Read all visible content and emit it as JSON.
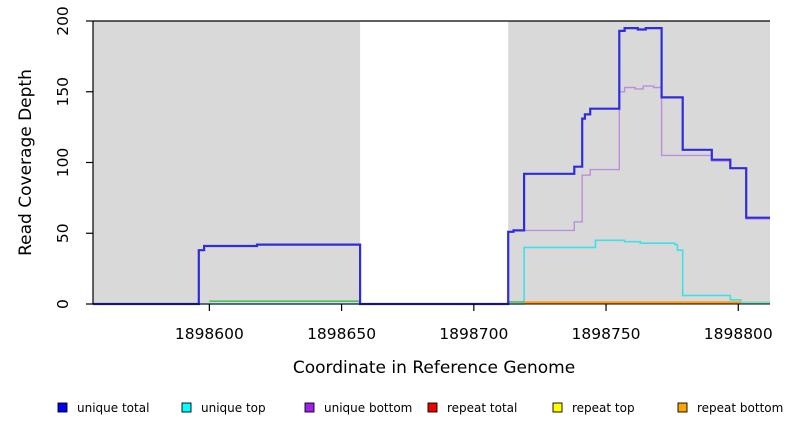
{
  "chart_data": {
    "type": "line",
    "subtype": "step-coverage",
    "title": "",
    "xlabel": "Coordinate in Reference Genome",
    "ylabel": "Read Coverage Depth",
    "xlim": [
      1898556,
      1898812
    ],
    "ylim": [
      0,
      200
    ],
    "xticks": [
      1898600,
      1898650,
      1898700,
      1898750,
      1898800
    ],
    "yticks": [
      0,
      50,
      100,
      150,
      200
    ],
    "grid": false,
    "plot_bg": "#ffffff",
    "shade_color": "#d9d9d9",
    "frame_color": "#000000",
    "shaded_regions": [
      {
        "name": "left-gray-block",
        "x0": 1898556,
        "x1": 1898657
      },
      {
        "name": "right-gray-block",
        "x0": 1898713,
        "x1": 1898812
      }
    ],
    "series": [
      {
        "name": "unique bottom",
        "color": "#bd8ede",
        "width": 1.4,
        "xend": 1898812,
        "steps": [
          [
            1898556,
            0
          ],
          [
            1898596,
            38
          ],
          [
            1898598,
            41
          ],
          [
            1898618,
            42
          ],
          [
            1898657,
            0
          ],
          [
            1898713,
            51
          ],
          [
            1898715,
            52
          ],
          [
            1898738,
            58
          ],
          [
            1898741,
            91
          ],
          [
            1898744,
            95
          ],
          [
            1898755,
            150
          ],
          [
            1898757,
            153
          ],
          [
            1898761,
            152
          ],
          [
            1898764,
            154
          ],
          [
            1898768,
            153
          ],
          [
            1898771,
            105
          ],
          [
            1898790,
            101
          ],
          [
            1898797,
            96
          ],
          [
            1898803,
            60
          ]
        ]
      },
      {
        "name": "unique top",
        "color": "#3fe0e8",
        "width": 1.6,
        "xend": 1898812,
        "steps": [
          [
            1898556,
            0
          ],
          [
            1898719,
            40
          ],
          [
            1898746,
            45
          ],
          [
            1898757,
            44
          ],
          [
            1898763,
            43
          ],
          [
            1898776,
            42
          ],
          [
            1898777,
            38
          ],
          [
            1898779,
            6
          ],
          [
            1898797,
            3
          ],
          [
            1898801,
            1
          ]
        ]
      },
      {
        "name": "baseline green left",
        "color": "#55bd66",
        "width": 1.6,
        "xend": 1898657,
        "steps": [
          [
            1898600,
            2
          ]
        ]
      },
      {
        "name": "baseline green mid",
        "color": "#55bd66",
        "width": 1.6,
        "xend": 1898719,
        "steps": [
          [
            1898713,
            1.5
          ]
        ]
      },
      {
        "name": "repeat bottom",
        "color": "#ff9d18",
        "width": 2.6,
        "xend": 1898801,
        "steps": [
          [
            1898719,
            1
          ]
        ]
      },
      {
        "name": "baseline green right",
        "color": "#a8d8b0",
        "width": 1.6,
        "xend": 1898812,
        "steps": [
          [
            1898801,
            1.5
          ]
        ]
      },
      {
        "name": "unique total",
        "color": "#2f2cdb",
        "width": 2.2,
        "xend": 1898812,
        "steps": [
          [
            1898556,
            0
          ],
          [
            1898596,
            38
          ],
          [
            1898598,
            41
          ],
          [
            1898618,
            42
          ],
          [
            1898657,
            0
          ],
          [
            1898713,
            51
          ],
          [
            1898715,
            52
          ],
          [
            1898719,
            92
          ],
          [
            1898738,
            97
          ],
          [
            1898741,
            131
          ],
          [
            1898742,
            134
          ],
          [
            1898744,
            138
          ],
          [
            1898755,
            193
          ],
          [
            1898757,
            195
          ],
          [
            1898762,
            194
          ],
          [
            1898765,
            195
          ],
          [
            1898771,
            146
          ],
          [
            1898779,
            109
          ],
          [
            1898790,
            102
          ],
          [
            1898797,
            96
          ],
          [
            1898803,
            61
          ]
        ]
      }
    ],
    "legend": {
      "position": "bottom",
      "items": [
        {
          "label": "unique total",
          "color": "#0000f5"
        },
        {
          "label": "unique top",
          "color": "#00ffff"
        },
        {
          "label": "unique bottom",
          "color": "#a020f0"
        },
        {
          "label": "repeat total",
          "color": "#ee0000"
        },
        {
          "label": "repeat top",
          "color": "#ffff00"
        },
        {
          "label": "repeat bottom",
          "color": "#ffa500"
        }
      ]
    }
  }
}
